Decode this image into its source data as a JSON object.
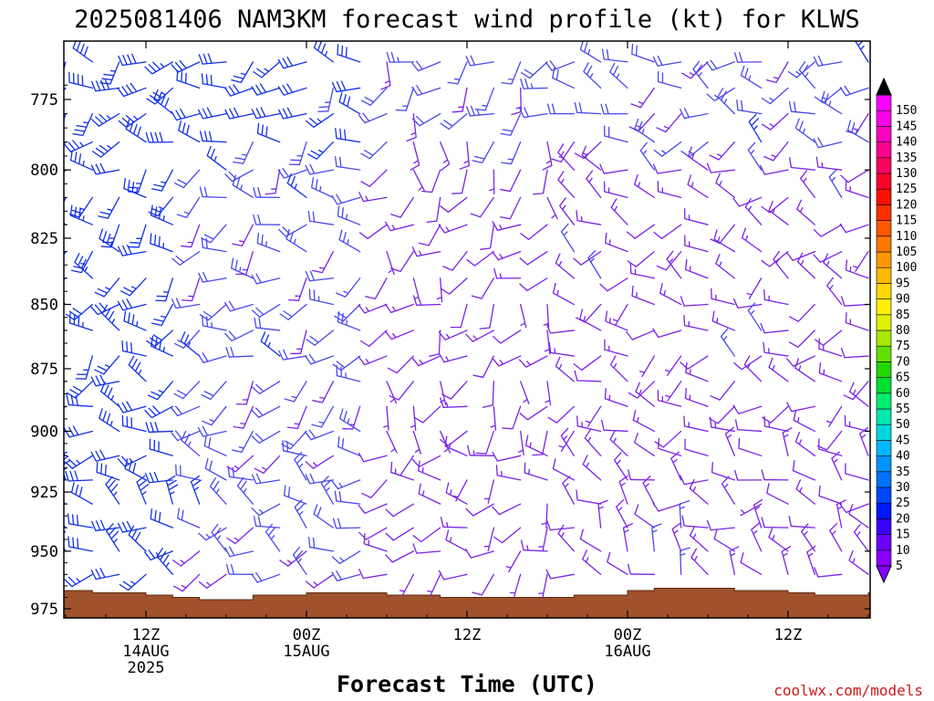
{
  "chart_data": {
    "type": "wind-profile",
    "title": "2025081406 NAM3KM forecast wind profile (kt) for KLWS",
    "xlabel": "Forecast Time (UTC)",
    "ylabel": "",
    "credit": "coolwx.com/models",
    "y_ticks": [
      775,
      800,
      825,
      850,
      875,
      900,
      925,
      950,
      975
    ],
    "ylim": [
      980,
      758
    ],
    "x_ticks": [
      {
        "hour": 6,
        "lines": [
          "12Z",
          "14AUG",
          "2025"
        ]
      },
      {
        "hour": 18,
        "lines": [
          "00Z",
          "15AUG"
        ]
      },
      {
        "hour": 30,
        "lines": [
          "12Z"
        ]
      },
      {
        "hour": 42,
        "lines": [
          "00Z",
          "16AUG"
        ]
      },
      {
        "hour": 54,
        "lines": [
          "12Z"
        ]
      }
    ],
    "xlim": [
      0,
      60
    ],
    "pressure_levels": [
      762,
      771,
      780,
      790,
      800,
      810,
      820,
      830,
      840,
      850,
      860,
      870,
      880,
      890,
      900,
      910,
      920,
      930,
      940,
      950,
      960,
      970,
      975
    ],
    "time_hours": [
      0,
      2,
      4,
      6,
      8,
      10,
      12,
      14,
      16,
      18,
      20,
      22,
      24,
      26,
      28,
      30,
      32,
      34,
      36,
      38,
      40,
      42,
      44,
      46,
      48,
      50,
      52,
      54,
      56,
      58,
      60
    ],
    "speed_regimes": [
      {
        "hours": [
          0,
          10
        ],
        "speed_kt": 30,
        "direction_deg": 255
      },
      {
        "hours": [
          10,
          24
        ],
        "speed_kt": 20,
        "direction_deg": 250
      },
      {
        "hours": [
          24,
          38
        ],
        "speed_kt": 10,
        "direction_deg": 210
      },
      {
        "hours": [
          38,
          60
        ],
        "speed_kt": 12,
        "direction_deg": 270
      }
    ],
    "surface_pressure_mb": [
      {
        "hour": 0,
        "value": 967
      },
      {
        "hour": 2,
        "value": 968
      },
      {
        "hour": 6,
        "value": 969
      },
      {
        "hour": 8,
        "value": 970
      },
      {
        "hour": 10,
        "value": 971
      },
      {
        "hour": 14,
        "value": 969
      },
      {
        "hour": 18,
        "value": 968
      },
      {
        "hour": 24,
        "value": 969
      },
      {
        "hour": 28,
        "value": 970
      },
      {
        "hour": 34,
        "value": 970
      },
      {
        "hour": 38,
        "value": 969
      },
      {
        "hour": 42,
        "value": 967
      },
      {
        "hour": 44,
        "value": 966
      },
      {
        "hour": 46,
        "value": 966
      },
      {
        "hour": 50,
        "value": 967
      },
      {
        "hour": 54,
        "value": 968
      },
      {
        "hour": 56,
        "value": 969
      },
      {
        "hour": 60,
        "value": 968
      }
    ],
    "colorbar": {
      "ticks": [
        5,
        10,
        15,
        20,
        25,
        30,
        35,
        40,
        45,
        50,
        55,
        60,
        65,
        70,
        75,
        80,
        85,
        90,
        95,
        100,
        105,
        110,
        115,
        120,
        125,
        130,
        135,
        140,
        145,
        150
      ],
      "colors": [
        "#8a00ff",
        "#6a00ff",
        "#3a00ff",
        "#0018ff",
        "#0048ff",
        "#0070ff",
        "#0094ff",
        "#00b8ff",
        "#00d8e0",
        "#00e8b0",
        "#00ee70",
        "#00e030",
        "#20d800",
        "#60e000",
        "#a8e800",
        "#e0f000",
        "#fff000",
        "#ffd800",
        "#ffb800",
        "#ff9800",
        "#ff7800",
        "#ff5800",
        "#ff3000",
        "#ff1000",
        "#ff0028",
        "#ff0060",
        "#ff0090",
        "#ff00c0",
        "#ff00e8",
        "#ff00ff"
      ]
    },
    "ground_color": "#a0522d",
    "barb_color_low": "#7a22e8",
    "barb_color_high": "#1030e8"
  }
}
